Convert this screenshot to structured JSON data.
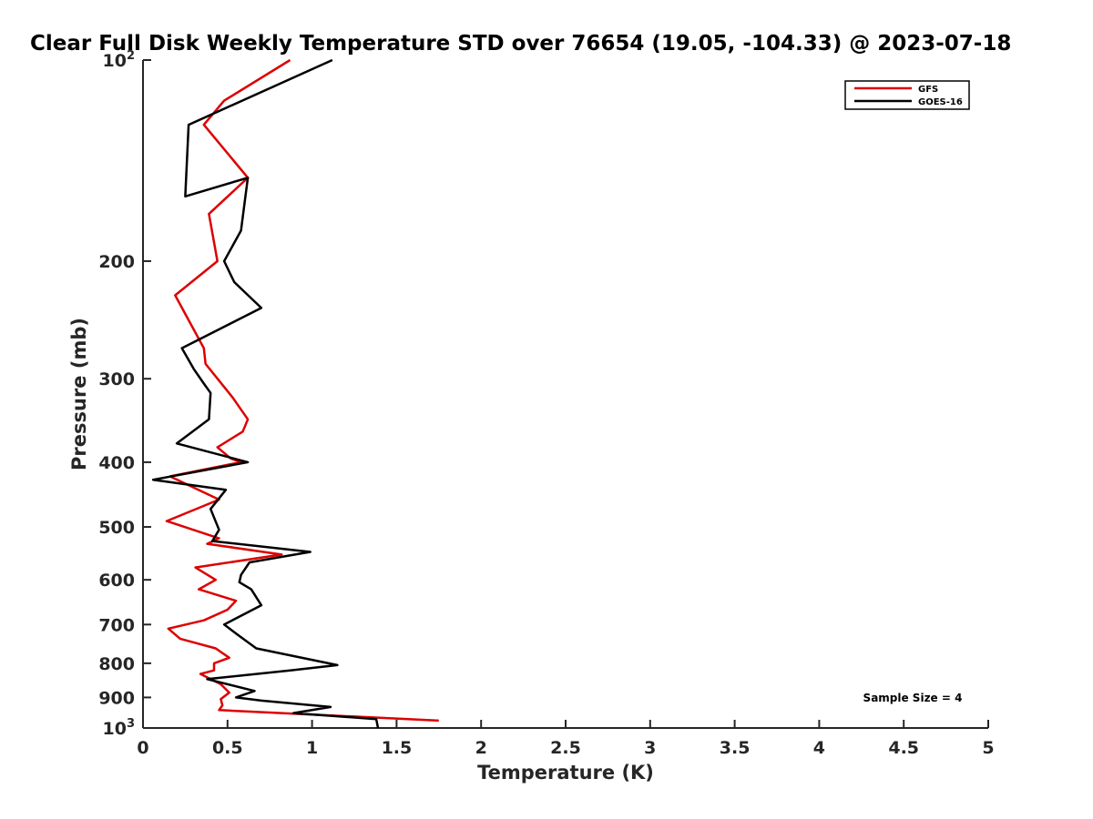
{
  "chart_data": {
    "type": "line",
    "title": "Clear Full Disk Weekly Temperature STD over 76654 (19.05, -104.33) @ 2023-07-18",
    "xlabel": "Temperature (K)",
    "ylabel": "Pressure (mb)",
    "xlim": [
      0,
      5
    ],
    "ylim": [
      100,
      1000
    ],
    "yscale": "log",
    "yreversed": true,
    "grid": false,
    "legend_position": "top-right",
    "x_ticks": [
      "0",
      "0.5",
      "1",
      "1.5",
      "2",
      "2.5",
      "3",
      "3.5",
      "4",
      "4.5",
      "5"
    ],
    "y_ticks": [
      {
        "value": 100,
        "base": "10",
        "exp": "2"
      },
      {
        "value": 200,
        "label": "200"
      },
      {
        "value": 300,
        "label": "300"
      },
      {
        "value": 400,
        "label": "400"
      },
      {
        "value": 500,
        "label": "500"
      },
      {
        "value": 600,
        "label": "600"
      },
      {
        "value": 700,
        "label": "700"
      },
      {
        "value": 800,
        "label": "800"
      },
      {
        "value": 900,
        "label": "900"
      },
      {
        "value": 1000,
        "base": "10",
        "exp": "3"
      }
    ],
    "annotation": "Sample Size = 4",
    "series": [
      {
        "name": "GFS",
        "color": "#dd0000",
        "points": [
          [
            0.87,
            100
          ],
          [
            0.48,
            115
          ],
          [
            0.36,
            125
          ],
          [
            0.62,
            150
          ],
          [
            0.39,
            170
          ],
          [
            0.44,
            200
          ],
          [
            0.19,
            225
          ],
          [
            0.36,
            270
          ],
          [
            0.37,
            285
          ],
          [
            0.53,
            320
          ],
          [
            0.62,
            345
          ],
          [
            0.59,
            360
          ],
          [
            0.44,
            380
          ],
          [
            0.52,
            395
          ],
          [
            0.58,
            400
          ],
          [
            0.16,
            420
          ],
          [
            0.45,
            455
          ],
          [
            0.14,
            490
          ],
          [
            0.45,
            520
          ],
          [
            0.38,
            530
          ],
          [
            0.82,
            550
          ],
          [
            0.31,
            575
          ],
          [
            0.43,
            600
          ],
          [
            0.33,
            620
          ],
          [
            0.55,
            645
          ],
          [
            0.5,
            665
          ],
          [
            0.36,
            690
          ],
          [
            0.15,
            710
          ],
          [
            0.22,
            735
          ],
          [
            0.43,
            760
          ],
          [
            0.51,
            785
          ],
          [
            0.42,
            800
          ],
          [
            0.42,
            820
          ],
          [
            0.34,
            830
          ],
          [
            0.46,
            860
          ],
          [
            0.51,
            885
          ],
          [
            0.46,
            905
          ],
          [
            0.47,
            925
          ],
          [
            0.45,
            940
          ],
          [
            1.75,
            975
          ]
        ]
      },
      {
        "name": "GOES-16",
        "color": "#000000",
        "points": [
          [
            1.12,
            100
          ],
          [
            0.27,
            125
          ],
          [
            0.25,
            160
          ],
          [
            0.62,
            150
          ],
          [
            0.58,
            180
          ],
          [
            0.48,
            200
          ],
          [
            0.54,
            215
          ],
          [
            0.7,
            235
          ],
          [
            0.23,
            270
          ],
          [
            0.3,
            290
          ],
          [
            0.36,
            305
          ],
          [
            0.4,
            315
          ],
          [
            0.39,
            345
          ],
          [
            0.2,
            375
          ],
          [
            0.62,
            400
          ],
          [
            0.06,
            425
          ],
          [
            0.49,
            440
          ],
          [
            0.4,
            470
          ],
          [
            0.45,
            505
          ],
          [
            0.41,
            525
          ],
          [
            0.99,
            545
          ],
          [
            0.63,
            565
          ],
          [
            0.58,
            590
          ],
          [
            0.57,
            605
          ],
          [
            0.64,
            620
          ],
          [
            0.7,
            655
          ],
          [
            0.48,
            700
          ],
          [
            0.56,
            725
          ],
          [
            0.67,
            760
          ],
          [
            1.15,
            805
          ],
          [
            0.87,
            820
          ],
          [
            0.38,
            845
          ],
          [
            0.66,
            880
          ],
          [
            0.55,
            900
          ],
          [
            0.7,
            910
          ],
          [
            1.11,
            930
          ],
          [
            0.89,
            950
          ],
          [
            1.38,
            970
          ],
          [
            1.39,
            1000
          ]
        ]
      }
    ]
  }
}
